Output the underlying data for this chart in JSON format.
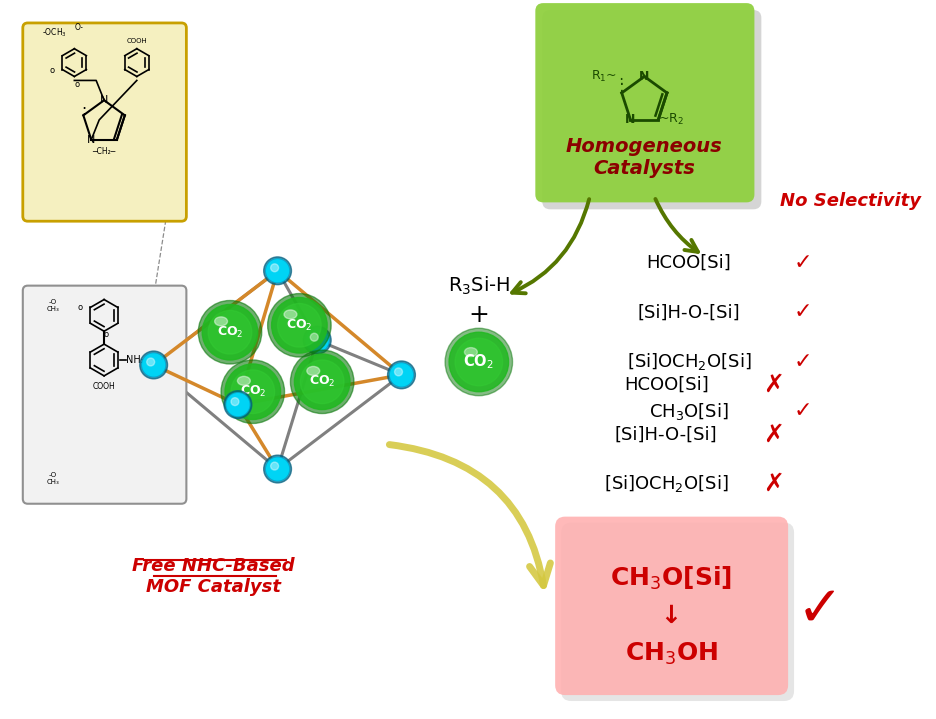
{
  "bg_color": "#ffffff",
  "green_box_color": "#90d040",
  "no_selectivity_color": "#cc0000",
  "co2_color": "#1db01d",
  "top_mark_color": "#cc0000",
  "bottom_mark_color": "#cc0000",
  "pink_box_color": "#ffb0b0",
  "mof_label_color": "#cc0000",
  "node_color": "#00bcd4",
  "edge_color_gray": "#808080",
  "edge_color_orange": "#d4882a",
  "arrow_color": "#d4c840",
  "top_products": [
    "HCOO[Si]",
    "[Si]H-O-[Si]",
    "[Si]OCH$_2$O[Si]",
    "CH$_3$O[Si]"
  ],
  "bottom_products": [
    "HCOO[Si]",
    "[Si]H-O-[Si]",
    "[Si]OCH$_2$O[Si]"
  ]
}
